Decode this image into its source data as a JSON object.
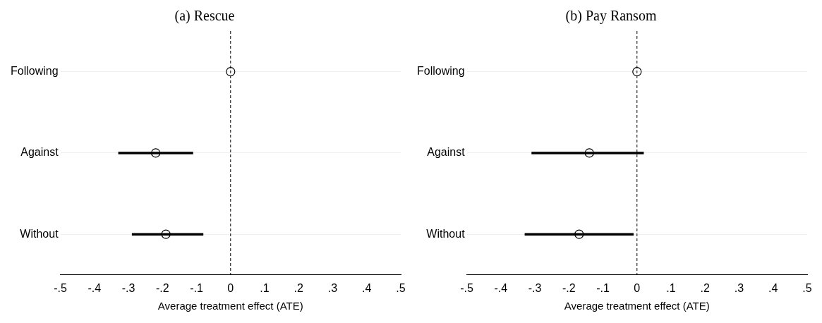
{
  "chart_data": [
    {
      "type": "scatter",
      "title": "(a) Rescue",
      "xlabel": "Average treatment effect (ATE)",
      "orientation": "horizontal",
      "categories": [
        "Following",
        "Against",
        "Without"
      ],
      "values": [
        0,
        -0.22,
        -0.19
      ],
      "errors": [
        null,
        [
          -0.33,
          -0.11
        ],
        [
          -0.29,
          -0.08
        ]
      ],
      "color": "#000000",
      "marker": "circle",
      "xlim": [
        -0.5,
        0.5
      ],
      "xticks": [
        {
          "value": -0.5,
          "label": "-.5"
        },
        {
          "value": -0.4,
          "label": "-.4"
        },
        {
          "value": -0.3,
          "label": "-.3"
        },
        {
          "value": -0.2,
          "label": "-.2"
        },
        {
          "value": -0.1,
          "label": "-.1"
        },
        0,
        {
          "value": 0.1,
          "label": ".1"
        },
        {
          "value": 0.2,
          "label": ".2"
        },
        {
          "value": 0.3,
          "label": ".3"
        },
        {
          "value": 0.4,
          "label": ".4"
        },
        {
          "value": 0.5,
          "label": ".5"
        }
      ],
      "ref_lines": [
        {
          "axis": "x",
          "value": 0,
          "line_style": "dashed",
          "color": "#000000"
        }
      ],
      "grid": "y"
    },
    {
      "type": "scatter",
      "title": "(b) Pay Ransom",
      "xlabel": "Average treatment effect (ATE)",
      "orientation": "horizontal",
      "categories": [
        "Following",
        "Against",
        "Without"
      ],
      "values": [
        0,
        -0.14,
        -0.17
      ],
      "errors": [
        null,
        [
          -0.31,
          0.02
        ],
        [
          -0.33,
          -0.01
        ]
      ],
      "color": "#000000",
      "marker": "circle",
      "xlim": [
        -0.5,
        0.5
      ],
      "xticks": [
        {
          "value": -0.5,
          "label": "-.5"
        },
        {
          "value": -0.4,
          "label": "-.4"
        },
        {
          "value": -0.3,
          "label": "-.3"
        },
        {
          "value": -0.2,
          "label": "-.2"
        },
        {
          "value": -0.1,
          "label": "-.1"
        },
        0,
        {
          "value": 0.1,
          "label": ".1"
        },
        {
          "value": 0.2,
          "label": ".2"
        },
        {
          "value": 0.3,
          "label": ".3"
        },
        {
          "value": 0.4,
          "label": ".4"
        },
        {
          "value": 0.5,
          "label": ".5"
        }
      ],
      "ref_lines": [
        {
          "axis": "x",
          "value": 0,
          "line_style": "dashed",
          "color": "#000000"
        }
      ],
      "grid": "y"
    }
  ]
}
